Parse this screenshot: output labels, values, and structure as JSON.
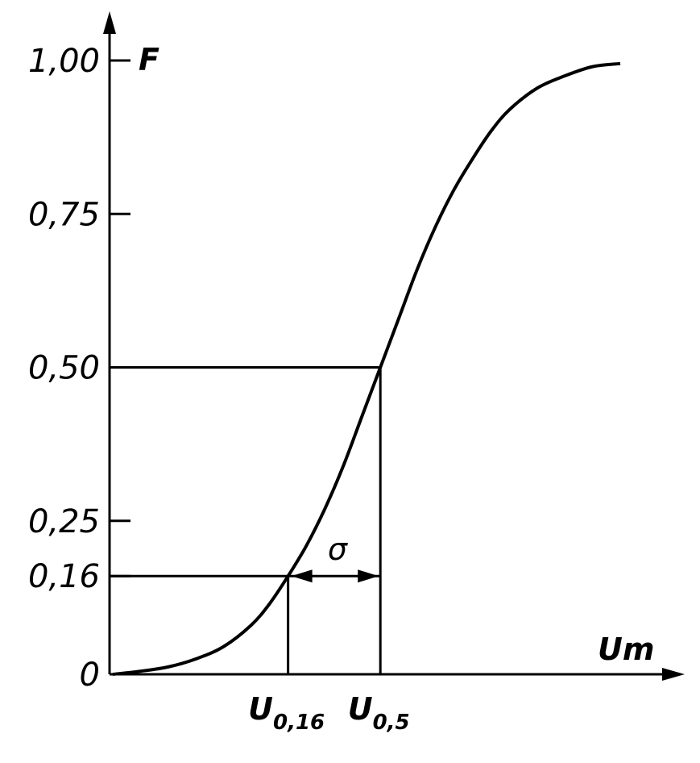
{
  "chart_data": {
    "type": "line",
    "title": "",
    "ylabel": "F",
    "xlabel": "Um",
    "ylim": [
      0,
      1.0
    ],
    "yticks": [
      {
        "value": 1.0,
        "label": "1,00"
      },
      {
        "value": 0.75,
        "label": "0,75"
      },
      {
        "value": 0.5,
        "label": "0,50"
      },
      {
        "value": 0.25,
        "label": "0,25"
      },
      {
        "value": 0.16,
        "label": "0,16"
      },
      {
        "value": 0.0,
        "label": "0"
      }
    ],
    "x_markers": [
      {
        "base": "U",
        "sub": "0,16",
        "x": -1.0,
        "y": 0.16
      },
      {
        "base": "U",
        "sub": "0,5",
        "x": 0.0,
        "y": 0.5
      }
    ],
    "sigma_label": "σ",
    "xlim": [
      -2.9,
      2.6
    ],
    "series": [
      {
        "x": [
          -2.9,
          -2.6,
          -2.3,
          -2.0,
          -1.7,
          -1.4,
          -1.2,
          -1.0,
          -0.8,
          -0.6,
          -0.4,
          -0.2,
          0.0,
          0.2,
          0.4,
          0.6,
          0.8,
          1.0,
          1.2,
          1.4,
          1.7,
          2.0,
          2.3,
          2.6
        ],
        "y": [
          0.0,
          0.005,
          0.012,
          0.025,
          0.045,
          0.08,
          0.115,
          0.16,
          0.21,
          0.27,
          0.34,
          0.42,
          0.5,
          0.58,
          0.66,
          0.73,
          0.79,
          0.84,
          0.885,
          0.92,
          0.955,
          0.975,
          0.99,
          0.995
        ]
      }
    ],
    "grid": false
  }
}
